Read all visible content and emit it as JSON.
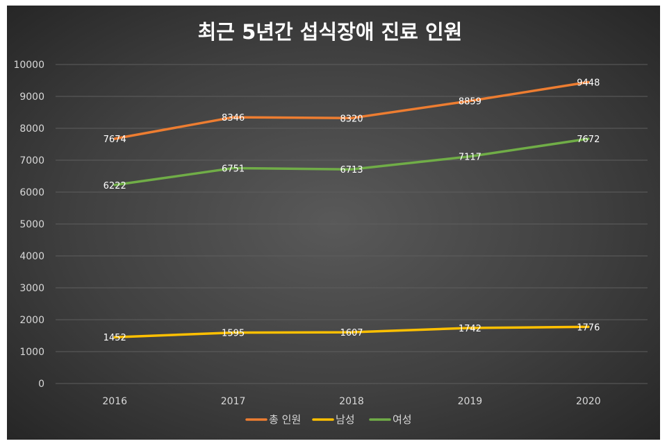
{
  "chart_data": {
    "type": "line",
    "title": "최근 5년간 섭식장애 진료 인원",
    "xlabel": "",
    "ylabel": "",
    "categories": [
      "2016",
      "2017",
      "2018",
      "2019",
      "2020"
    ],
    "ylim": [
      0,
      10000
    ],
    "yticks": [
      0,
      1000,
      2000,
      3000,
      4000,
      5000,
      6000,
      7000,
      8000,
      9000,
      10000
    ],
    "grid": true,
    "legend_position": "bottom",
    "series": [
      {
        "name": "총 인원",
        "color": "#ed7d31",
        "values": [
          7674,
          8346,
          8320,
          8859,
          9448
        ]
      },
      {
        "name": "남성",
        "color": "#ffc000",
        "values": [
          1452,
          1595,
          1607,
          1742,
          1776
        ]
      },
      {
        "name": "여성",
        "color": "#70ad47",
        "values": [
          6222,
          6751,
          6713,
          7117,
          7672
        ]
      }
    ]
  }
}
